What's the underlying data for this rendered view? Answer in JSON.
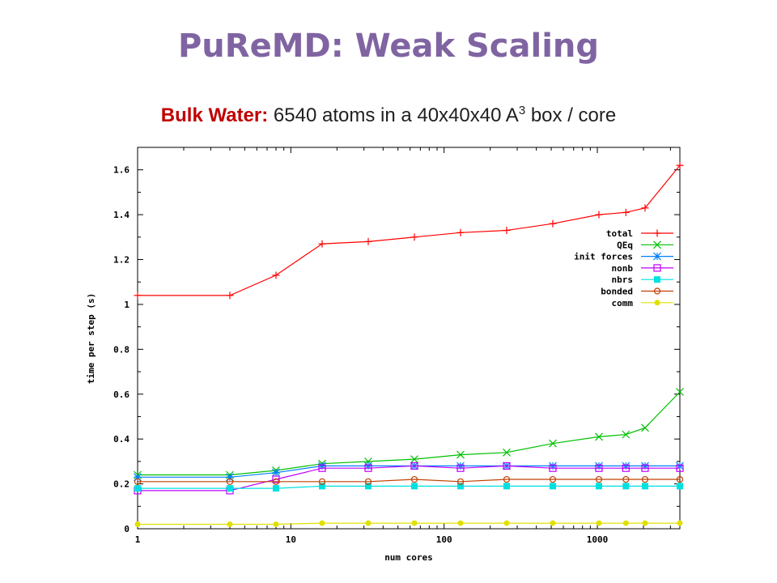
{
  "slide": {
    "title": "PuReMD: Weak Scaling",
    "subtitle_lead": "Bulk Water:",
    "subtitle_rest": " 6540 atoms in a 40x40x40 A",
    "subtitle_sup": "3",
    "subtitle_tail": " box / core"
  },
  "chart_data": {
    "type": "line",
    "title": "",
    "xlabel": "num cores",
    "ylabel": "time per step (s)",
    "xscale": "log",
    "xlim": [
      1,
      3456
    ],
    "ylim": [
      0,
      1.7
    ],
    "grid": false,
    "legend_position": "top-right",
    "x_ticks": [
      1,
      10,
      100,
      1000
    ],
    "y_ticks": [
      0,
      0.2,
      0.4,
      0.6,
      0.8,
      1,
      1.2,
      1.4,
      1.6
    ],
    "x_tick_labels": [
      "1",
      "10",
      "100",
      "1000"
    ],
    "y_tick_labels": [
      "0",
      "0.2",
      "0.4",
      "0.6",
      "0.8",
      "1",
      "1.2",
      "1.4",
      "1.6"
    ],
    "x": [
      1,
      4,
      8,
      16,
      32,
      64,
      128,
      256,
      512,
      1024,
      1536,
      2048,
      3456
    ],
    "series": [
      {
        "name": "total",
        "color": "#FF0000",
        "marker": "plus",
        "values": [
          1.04,
          1.04,
          1.13,
          1.27,
          1.28,
          1.3,
          1.32,
          1.33,
          1.36,
          1.4,
          1.41,
          1.43,
          1.62
        ]
      },
      {
        "name": "QEq",
        "color": "#00C000",
        "marker": "cross",
        "values": [
          0.24,
          0.24,
          0.26,
          0.29,
          0.3,
          0.31,
          0.33,
          0.34,
          0.38,
          0.41,
          0.42,
          0.45,
          0.61
        ]
      },
      {
        "name": "init forces",
        "color": "#0080FF",
        "marker": "star",
        "values": [
          0.23,
          0.23,
          0.25,
          0.28,
          0.28,
          0.28,
          0.28,
          0.28,
          0.28,
          0.28,
          0.28,
          0.28,
          0.28
        ]
      },
      {
        "name": "nonb",
        "color": "#C000FF",
        "marker": "square",
        "values": [
          0.17,
          0.17,
          0.22,
          0.27,
          0.27,
          0.28,
          0.27,
          0.28,
          0.27,
          0.27,
          0.27,
          0.27,
          0.27
        ]
      },
      {
        "name": "nbrs",
        "color": "#00E0E0",
        "marker": "filled-square",
        "values": [
          0.18,
          0.18,
          0.18,
          0.19,
          0.19,
          0.19,
          0.19,
          0.19,
          0.19,
          0.19,
          0.19,
          0.19,
          0.19
        ]
      },
      {
        "name": "bonded",
        "color": "#C04000",
        "marker": "circle",
        "values": [
          0.21,
          0.21,
          0.21,
          0.21,
          0.21,
          0.22,
          0.21,
          0.22,
          0.22,
          0.22,
          0.22,
          0.22,
          0.22
        ]
      },
      {
        "name": "comm",
        "color": "#E0E000",
        "marker": "filled-circle",
        "values": [
          0.02,
          0.02,
          0.02,
          0.025,
          0.025,
          0.025,
          0.025,
          0.025,
          0.025,
          0.025,
          0.025,
          0.025,
          0.025
        ]
      }
    ]
  }
}
